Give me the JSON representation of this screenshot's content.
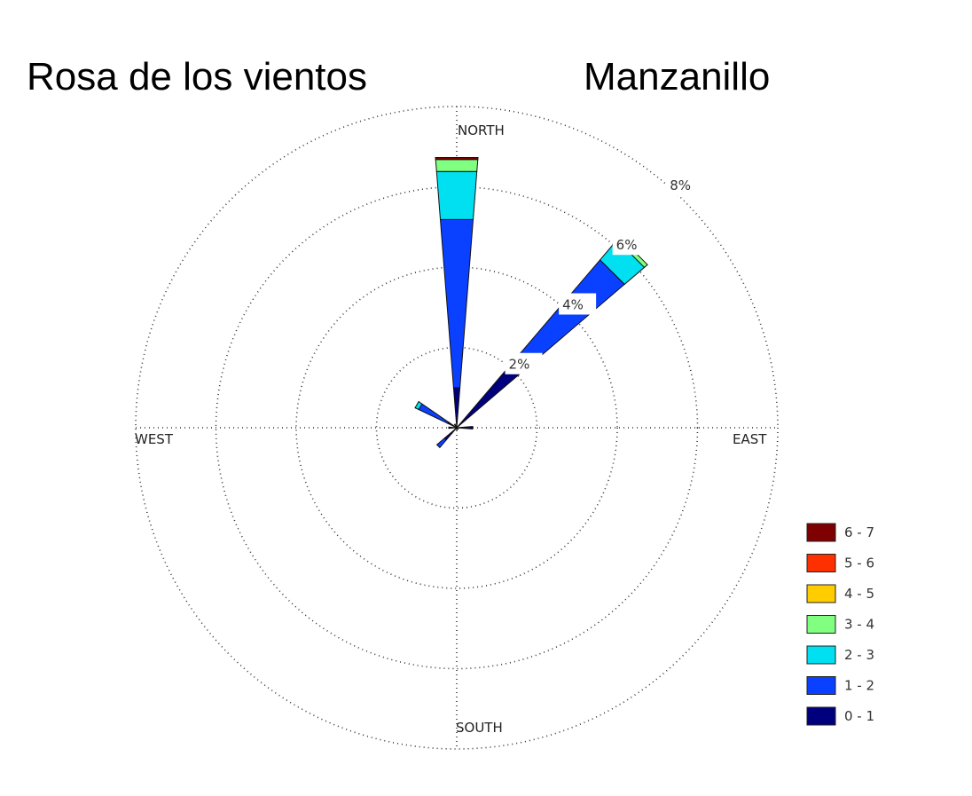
{
  "chart_data": {
    "type": "windrose",
    "title_left": "Rosa de los vientos",
    "title_right": "Manzanillo",
    "direction_labels": {
      "north": "NORTH",
      "south": "SOUTH",
      "east": "EAST",
      "west": "WEST"
    },
    "ring_values": [
      2,
      4,
      6,
      8
    ],
    "ring_labels": [
      "2%",
      "4%",
      "6%",
      "8%"
    ],
    "ring_max": 8,
    "bins": [
      {
        "label": "0 - 1",
        "color": "#00007f"
      },
      {
        "label": "1 - 2",
        "color": "#0a40ff"
      },
      {
        "label": "2 - 3",
        "color": "#00e0f0"
      },
      {
        "label": "3 - 4",
        "color": "#80ff80"
      },
      {
        "label": "4 - 5",
        "color": "#ffcc00"
      },
      {
        "label": "5 - 6",
        "color": "#ff3000"
      },
      {
        "label": "6 - 7",
        "color": "#7f0000"
      }
    ],
    "directions": [
      {
        "angle": 0,
        "values": [
          1.0,
          4.2,
          1.2,
          0.3,
          0,
          0,
          0.05
        ]
      },
      {
        "angle": 45,
        "values": [
          2.05,
          3.45,
          0.65,
          0.1,
          0,
          0,
          0
        ]
      },
      {
        "angle": 90,
        "values": [
          0.4,
          0,
          0,
          0,
          0,
          0,
          0
        ]
      },
      {
        "angle": 135,
        "values": [
          0.05,
          0,
          0,
          0,
          0,
          0,
          0
        ]
      },
      {
        "angle": 180,
        "values": [
          0.05,
          0,
          0,
          0,
          0,
          0,
          0
        ]
      },
      {
        "angle": 225,
        "values": [
          0.4,
          0.25,
          0,
          0,
          0,
          0,
          0
        ]
      },
      {
        "angle": 270,
        "values": [
          0.2,
          0,
          0,
          0,
          0,
          0,
          0
        ]
      },
      {
        "angle": 300,
        "values": [
          0.25,
          0.8,
          0.1,
          0,
          0,
          0,
          0
        ]
      },
      {
        "angle": 330,
        "values": [
          0.1,
          0,
          0,
          0,
          0,
          0,
          0
        ]
      }
    ]
  }
}
